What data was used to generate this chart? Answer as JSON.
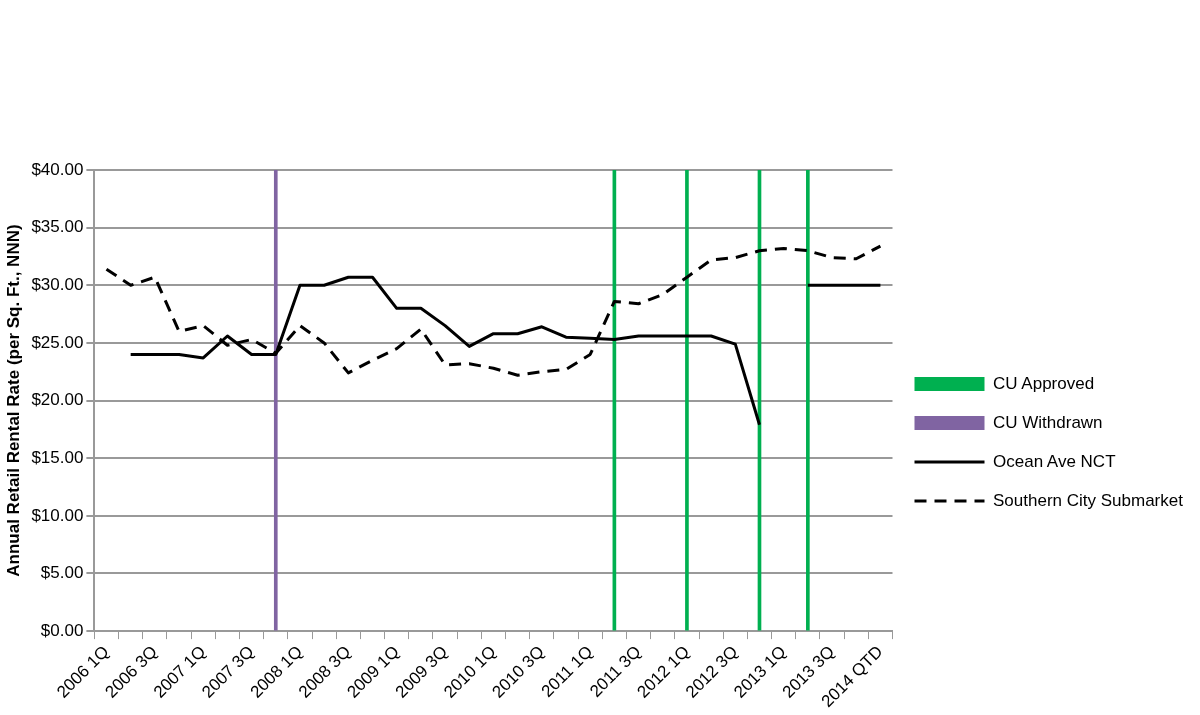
{
  "chart_data": {
    "type": "line",
    "ylabel": "Annual Retail Rental Rate (per Sq. Ft., NNN)",
    "categories": [
      "2006 1Q",
      null,
      "2006 3Q",
      null,
      "2007 1Q",
      null,
      "2007 3Q",
      null,
      "2008 1Q",
      null,
      "2008 3Q",
      null,
      "2009 1Q",
      null,
      "2009 3Q",
      null,
      "2010 1Q",
      null,
      "2010 3Q",
      null,
      "2011 1Q",
      null,
      "2011 3Q",
      null,
      "2012 1Q",
      null,
      "2012 3Q",
      null,
      "2013 1Q",
      null,
      "2013 3Q",
      null,
      "2014 QTD"
    ],
    "series": [
      {
        "name": "CU Approved",
        "type": "bar",
        "color": "#00b050",
        "values": [
          null,
          null,
          null,
          null,
          null,
          null,
          null,
          null,
          null,
          null,
          null,
          null,
          null,
          null,
          null,
          null,
          null,
          null,
          null,
          null,
          null,
          40,
          null,
          null,
          40,
          null,
          null,
          40,
          null,
          40,
          null,
          null,
          null
        ]
      },
      {
        "name": "CU Withdrawn",
        "type": "bar",
        "color": "#8064a2",
        "values": [
          null,
          null,
          null,
          null,
          null,
          null,
          null,
          40,
          null,
          null,
          null,
          null,
          null,
          null,
          null,
          null,
          null,
          null,
          null,
          null,
          null,
          null,
          null,
          null,
          null,
          null,
          null,
          null,
          null,
          null,
          null,
          null,
          null
        ]
      },
      {
        "name": "Ocean Ave NCT",
        "color": "#000000",
        "line_style": "solid",
        "values": [
          null,
          24,
          24,
          24,
          23.7,
          25.6,
          24,
          24,
          30,
          30,
          30.7,
          30.7,
          28,
          28,
          26.5,
          24.7,
          25.8,
          25.8,
          26.4,
          25.5,
          25.4,
          25.3,
          25.6,
          25.6,
          25.6,
          25.6,
          24.9,
          17.9,
          null,
          30,
          30,
          30,
          30
        ]
      },
      {
        "name": "Southern City Submarket",
        "color": "#000000",
        "line_style": "dashed",
        "values": [
          31.4,
          30.0,
          30.7,
          26.0,
          26.5,
          24.8,
          25.3,
          24.1,
          26.5,
          25.0,
          22.4,
          23.5,
          24.5,
          26.2,
          23.1,
          23.2,
          22.8,
          22.2,
          22.5,
          22.7,
          24.0,
          28.6,
          28.4,
          29.2,
          30.7,
          32.2,
          32.4,
          33.0,
          33.2,
          33.0,
          32.4,
          32.3,
          33.4
        ]
      }
    ],
    "ylim": [
      0,
      40
    ],
    "yticks": [
      {
        "value": 0,
        "label": "$0.00"
      },
      {
        "value": 5,
        "label": "$5.00"
      },
      {
        "value": 10,
        "label": "$10.00"
      },
      {
        "value": 15,
        "label": "$15.00"
      },
      {
        "value": 20,
        "label": "$20.00"
      },
      {
        "value": 25,
        "label": "$25.00"
      },
      {
        "value": 30,
        "label": "$30.00"
      },
      {
        "value": 35,
        "label": "$35.00"
      },
      {
        "value": 40,
        "label": "$40.00"
      }
    ],
    "grid": "y",
    "legend": "right",
    "marker": "none"
  }
}
